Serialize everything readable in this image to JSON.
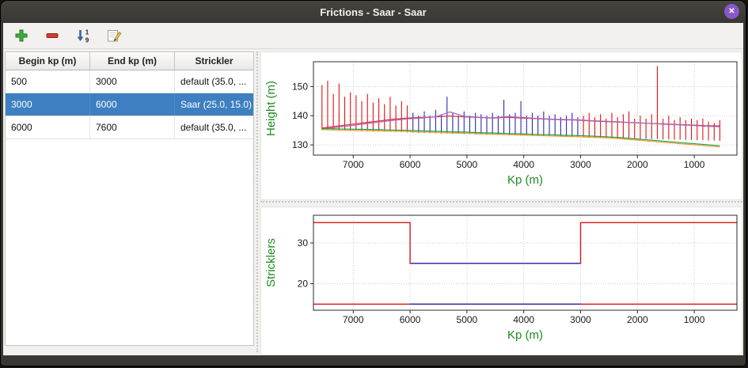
{
  "window": {
    "title": "Frictions - Saar - Saar",
    "close_glyph": "✕"
  },
  "colors": {
    "selection": "#3d7fc1",
    "close_button": "#8659c9",
    "axis_label_green": "#1e8c1e"
  },
  "toolbar": {
    "buttons": [
      {
        "name": "add",
        "icon": "plus-icon"
      },
      {
        "name": "remove",
        "icon": "minus-icon"
      },
      {
        "name": "sort",
        "icon": "sort-numeric-descending-icon"
      },
      {
        "name": "edit",
        "icon": "edit-pencil-icon"
      }
    ]
  },
  "table": {
    "columns": [
      "Begin kp (m)",
      "End kp (m)",
      "Strickler"
    ],
    "rows": [
      {
        "begin": "500",
        "end": "3000",
        "strickler": "default (35.0, ...",
        "selected": false
      },
      {
        "begin": "3000",
        "end": "6000",
        "strickler": "Saar (25.0, 15.0)",
        "selected": true
      },
      {
        "begin": "6000",
        "end": "7600",
        "strickler": "default (35.0, ...",
        "selected": false
      }
    ]
  },
  "chart_data": [
    {
      "type": "line",
      "title": "",
      "xlabel": "Kp (m)",
      "ylabel": "Height (m)",
      "label_color": "#1e8c1e",
      "x_reversed": true,
      "xlim": [
        7700,
        250
      ],
      "ylim": [
        126.5,
        158.5
      ],
      "x_ticks": [
        7000,
        6000,
        5000,
        4000,
        3000,
        2000,
        1000
      ],
      "y_ticks": [
        130,
        140,
        150
      ],
      "grid": true,
      "series": [
        {
          "name": "cross-sections-default",
          "kind": "vlines",
          "color": "#dd1414",
          "width": 1.1,
          "data": [
            [
              7550,
              135.2,
              150.5
            ],
            [
              7450,
              135.1,
              152.0
            ],
            [
              7350,
              135.0,
              147.5
            ],
            [
              7250,
              134.9,
              151.0
            ],
            [
              7150,
              134.9,
              146.5
            ],
            [
              7050,
              134.8,
              148.0
            ],
            [
              6950,
              134.8,
              147.0
            ],
            [
              6850,
              134.7,
              145.0
            ],
            [
              6750,
              134.7,
              147.5
            ],
            [
              6650,
              134.6,
              144.5
            ],
            [
              6550,
              134.6,
              146.0
            ],
            [
              6450,
              134.5,
              144.0
            ],
            [
              6350,
              134.5,
              146.5
            ],
            [
              6250,
              134.4,
              143.5
            ],
            [
              6150,
              134.4,
              145.0
            ],
            [
              6050,
              134.3,
              143.5
            ],
            [
              2950,
              132.6,
              140.0
            ],
            [
              2850,
              132.6,
              141.0
            ],
            [
              2750,
              132.5,
              139.5
            ],
            [
              2650,
              132.5,
              140.5
            ],
            [
              2550,
              132.4,
              139.0
            ],
            [
              2450,
              132.4,
              141.0
            ],
            [
              2350,
              132.3,
              139.5
            ],
            [
              2250,
              132.3,
              140.5
            ],
            [
              2150,
              132.2,
              141.5
            ],
            [
              2050,
              132.2,
              139.0
            ],
            [
              1950,
              132.1,
              140.0
            ],
            [
              1850,
              132.1,
              139.0
            ],
            [
              1750,
              132.0,
              140.5
            ],
            [
              1650,
              132.0,
              157.0
            ],
            [
              1550,
              131.9,
              139.0
            ],
            [
              1450,
              131.9,
              140.0
            ],
            [
              1350,
              131.8,
              138.5
            ],
            [
              1250,
              131.8,
              139.5
            ],
            [
              1150,
              131.7,
              138.5
            ],
            [
              1050,
              131.7,
              139.0
            ],
            [
              950,
              131.6,
              138.5
            ],
            [
              850,
              131.6,
              139.0
            ],
            [
              750,
              131.5,
              138.0
            ],
            [
              650,
              131.5,
              137.5
            ],
            [
              550,
              131.4,
              138.5
            ]
          ]
        },
        {
          "name": "cross-sections-saar",
          "kind": "vlines",
          "color": "#2a2ab0",
          "width": 1.1,
          "data": [
            [
              5950,
              134.2,
              141.0
            ],
            [
              5850,
              134.1,
              140.0
            ],
            [
              5750,
              134.1,
              141.5
            ],
            [
              5650,
              134.0,
              140.0
            ],
            [
              5550,
              134.0,
              142.0
            ],
            [
              5450,
              133.9,
              140.5
            ],
            [
              5350,
              133.9,
              146.5
            ],
            [
              5250,
              133.8,
              141.0
            ],
            [
              5150,
              133.8,
              140.0
            ],
            [
              5050,
              133.7,
              141.5
            ],
            [
              4950,
              133.7,
              140.0
            ],
            [
              4850,
              133.6,
              141.0
            ],
            [
              4750,
              133.6,
              140.5
            ],
            [
              4650,
              133.5,
              140.0
            ],
            [
              4550,
              133.5,
              141.0
            ],
            [
              4450,
              133.4,
              140.0
            ],
            [
              4350,
              133.4,
              145.5
            ],
            [
              4250,
              133.3,
              140.5
            ],
            [
              4150,
              133.3,
              141.0
            ],
            [
              4050,
              133.2,
              145.0
            ],
            [
              3950,
              133.2,
              140.0
            ],
            [
              3850,
              133.1,
              141.0
            ],
            [
              3750,
              133.1,
              140.0
            ],
            [
              3650,
              133.0,
              141.5
            ],
            [
              3550,
              133.0,
              140.0
            ],
            [
              3450,
              132.9,
              140.5
            ],
            [
              3350,
              132.9,
              139.5
            ],
            [
              3250,
              132.8,
              140.0
            ],
            [
              3150,
              132.8,
              141.0
            ],
            [
              3050,
              132.7,
              139.5
            ]
          ]
        },
        {
          "name": "profile-line-red",
          "kind": "line",
          "color": "#e03030",
          "width": 1.2,
          "x": [
            7550,
            7300,
            7050,
            6800,
            6550,
            6300,
            6050,
            5800,
            5550,
            5300,
            5050,
            4800,
            4550,
            4300,
            4050,
            3800,
            3550,
            3300,
            3050,
            2800,
            2550,
            2300,
            2050,
            1800,
            1550,
            1300,
            1050,
            800,
            550
          ],
          "y": [
            135.8,
            136.4,
            137.0,
            137.6,
            138.2,
            138.8,
            139.2,
            139.4,
            139.6,
            139.9,
            139.6,
            139.4,
            139.2,
            139.5,
            139.2,
            139.0,
            138.8,
            138.6,
            138.5,
            138.2,
            138.0,
            137.8,
            137.6,
            137.4,
            137.2,
            137.0,
            136.8,
            136.6,
            136.5
          ]
        },
        {
          "name": "profile-line-purple",
          "kind": "line",
          "color": "#a566c8",
          "width": 1.2,
          "x": [
            7550,
            7300,
            7050,
            6800,
            6550,
            6300,
            6050,
            5800,
            5550,
            5300,
            5050,
            4800,
            4550,
            4300,
            4050,
            3800,
            3550,
            3300,
            3050,
            2800,
            2550,
            2300,
            2050,
            1800,
            1550,
            1300,
            1050,
            800,
            550
          ],
          "y": [
            135.5,
            136.0,
            136.6,
            137.2,
            137.8,
            138.4,
            138.9,
            139.2,
            139.6,
            141.3,
            139.8,
            139.5,
            139.3,
            139.7,
            139.4,
            139.1,
            138.9,
            138.7,
            138.6,
            138.3,
            138.1,
            137.9,
            137.6,
            137.4,
            137.1,
            136.9,
            136.7,
            136.4,
            136.2
          ]
        },
        {
          "name": "profile-line-green",
          "kind": "line",
          "color": "#1ca04c",
          "width": 1.2,
          "x": [
            7550,
            7300,
            7050,
            6800,
            6550,
            6300,
            6050,
            5800,
            5550,
            5300,
            5050,
            4800,
            4550,
            4300,
            4050,
            3800,
            3550,
            3300,
            3050,
            2800,
            2550,
            2300,
            2050,
            1800,
            1550,
            1300,
            1050,
            800,
            550
          ],
          "y": [
            135.6,
            135.5,
            135.4,
            135.3,
            135.2,
            135.1,
            135.0,
            134.8,
            134.7,
            134.5,
            134.4,
            134.2,
            134.1,
            133.9,
            133.8,
            133.6,
            133.5,
            133.3,
            133.2,
            133.0,
            132.8,
            132.5,
            132.1,
            131.7,
            131.3,
            130.9,
            130.5,
            130.1,
            129.7
          ]
        },
        {
          "name": "profile-line-orange",
          "kind": "line",
          "color": "#f59a23",
          "width": 1.2,
          "x": [
            7550,
            7300,
            7050,
            6800,
            6550,
            6300,
            6050,
            5800,
            5550,
            5300,
            5050,
            4800,
            4550,
            4300,
            4050,
            3800,
            3550,
            3300,
            3050,
            2800,
            2550,
            2300,
            2050,
            1800,
            1550,
            1300,
            1050,
            800,
            550
          ],
          "y": [
            135.2,
            135.1,
            135.0,
            134.9,
            134.8,
            134.7,
            134.6,
            134.4,
            134.3,
            134.1,
            134.0,
            133.8,
            133.7,
            133.5,
            133.4,
            133.2,
            133.1,
            132.9,
            132.8,
            132.6,
            132.4,
            132.1,
            131.7,
            131.3,
            130.9,
            130.5,
            130.1,
            129.7,
            129.3
          ]
        }
      ]
    },
    {
      "type": "line",
      "title": "",
      "xlabel": "Kp (m)",
      "ylabel": "Stricklers",
      "label_color": "#1e8c1e",
      "x_reversed": true,
      "xlim": [
        7700,
        250
      ],
      "ylim": [
        13.5,
        36.8
      ],
      "x_ticks": [
        7000,
        6000,
        5000,
        4000,
        3000,
        2000,
        1000
      ],
      "y_ticks": [
        20,
        30
      ],
      "grid": true,
      "series": [
        {
          "name": "default-minor-bed-step",
          "kind": "line",
          "color": "#dd1414",
          "width": 1.4,
          "x": [
            7700,
            6000,
            6000,
            3000,
            3000,
            250
          ],
          "y": [
            35,
            35,
            25,
            25,
            35,
            35
          ]
        },
        {
          "name": "saar-minor-bed-step",
          "kind": "line",
          "color": "#2a2ab0",
          "width": 1.4,
          "x": [
            6000,
            3000
          ],
          "y": [
            25,
            25
          ]
        },
        {
          "name": "default-major-bed-line",
          "kind": "line",
          "color": "#dd1414",
          "width": 1.4,
          "x": [
            7700,
            250
          ],
          "y": [
            15,
            15
          ]
        },
        {
          "name": "saar-major-bed-line",
          "kind": "line",
          "color": "#2a2ab0",
          "width": 1.4,
          "x": [
            6000,
            3000
          ],
          "y": [
            15,
            15
          ]
        }
      ]
    }
  ]
}
